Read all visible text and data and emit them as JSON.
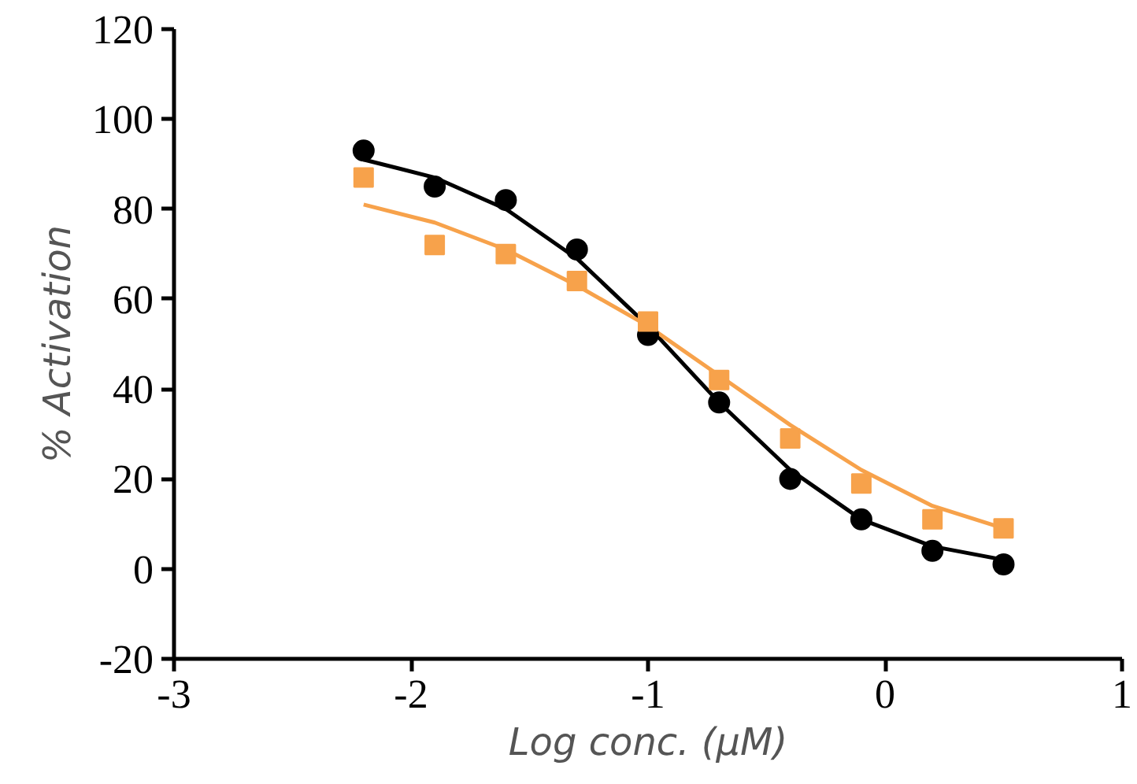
{
  "chart_data": {
    "type": "scatter",
    "xlabel": "Log conc. (μM)",
    "ylabel": "% Activation",
    "xlim": [
      -3,
      1
    ],
    "ylim": [
      -20,
      120
    ],
    "xticks": [
      -3,
      -2,
      -1,
      0,
      1
    ],
    "yticks": [
      -20,
      0,
      20,
      40,
      60,
      80,
      100,
      120
    ],
    "grid": false,
    "series": [
      {
        "type": "line",
        "color": "#000000",
        "marker": "none",
        "x": [
          -2.2,
          -1.9,
          -1.6,
          -1.3,
          -1.0,
          -0.7,
          -0.4,
          -0.1,
          0.2,
          0.5
        ],
        "values": [
          91,
          87,
          80,
          69,
          54,
          37,
          22,
          11,
          5,
          2
        ]
      },
      {
        "type": "line",
        "color": "#f7a24b",
        "marker": "none",
        "x": [
          -2.2,
          -1.9,
          -1.6,
          -1.3,
          -1.0,
          -0.7,
          -0.4,
          -0.1,
          0.2,
          0.5
        ],
        "values": [
          81,
          77,
          71,
          63,
          54,
          43,
          32,
          22,
          14,
          9
        ]
      },
      {
        "color": "#000000",
        "marker": "circle",
        "x": [
          -2.2,
          -1.9,
          -1.6,
          -1.3,
          -1.0,
          -0.7,
          -0.4,
          -0.1,
          0.2,
          0.5
        ],
        "values": [
          93,
          85,
          82,
          71,
          52,
          37,
          20,
          11,
          4,
          1
        ]
      },
      {
        "color": "#f7a24b",
        "marker": "square",
        "x": [
          -2.2,
          -1.9,
          -1.6,
          -1.3,
          -1.0,
          -0.7,
          -0.4,
          -0.1,
          0.2,
          0.5
        ],
        "values": [
          87,
          72,
          70,
          64,
          55,
          42,
          29,
          19,
          11,
          9
        ]
      }
    ]
  }
}
